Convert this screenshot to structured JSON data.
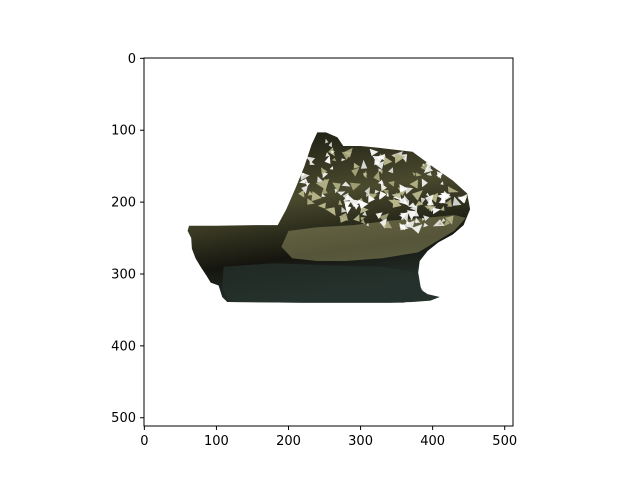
{
  "chart_data": {
    "type": "image",
    "title": "",
    "xlabel": "",
    "ylabel": "",
    "xlim": [
      -0.5,
      511.5
    ],
    "ylim": [
      511.5,
      -0.5
    ],
    "y_inverted": true,
    "grid": false,
    "x_ticks": [
      0,
      100,
      200,
      300,
      400,
      500
    ],
    "y_ticks": [
      0,
      100,
      200,
      300,
      400,
      500
    ],
    "x_tick_labels": [
      "0",
      "100",
      "200",
      "300",
      "400",
      "500"
    ],
    "y_tick_labels": [
      "0",
      "100",
      "200",
      "300",
      "400",
      "500"
    ],
    "image_content": {
      "description_name": "textured-3d-mesh-render",
      "background": "#ffffff",
      "colors": {
        "dark": "#15150f",
        "olive": "#4a4a2e",
        "khaki": "#8c8a5c",
        "teal_dark": "#26312c",
        "highlight": "#b8b68a"
      },
      "body_outline": [
        [
          60,
          240
        ],
        [
          62,
          233
        ],
        [
          100,
          233
        ],
        [
          155,
          232
        ],
        [
          185,
          232
        ],
        [
          197,
          210
        ],
        [
          210,
          180
        ],
        [
          222,
          150
        ],
        [
          232,
          120
        ],
        [
          240,
          103
        ],
        [
          252,
          103
        ],
        [
          268,
          110
        ],
        [
          276,
          122
        ],
        [
          300,
          122
        ],
        [
          330,
          125
        ],
        [
          372,
          130
        ],
        [
          402,
          152
        ],
        [
          428,
          170
        ],
        [
          448,
          188
        ],
        [
          452,
          210
        ],
        [
          443,
          232
        ],
        [
          428,
          245
        ],
        [
          408,
          256
        ],
        [
          393,
          268
        ],
        [
          382,
          282
        ],
        [
          380,
          298
        ],
        [
          384,
          322
        ],
        [
          393,
          328
        ],
        [
          410,
          332
        ],
        [
          397,
          337
        ],
        [
          372,
          339
        ],
        [
          340,
          340
        ],
        [
          290,
          340
        ],
        [
          220,
          340
        ],
        [
          115,
          339
        ],
        [
          108,
          332
        ],
        [
          103,
          316
        ],
        [
          92,
          312
        ],
        [
          86,
          302
        ],
        [
          78,
          290
        ],
        [
          71,
          278
        ],
        [
          66,
          265
        ],
        [
          65,
          250
        ]
      ],
      "sheen_polygon": [
        [
          200,
          240
        ],
        [
          240,
          235
        ],
        [
          290,
          232
        ],
        [
          340,
          226
        ],
        [
          390,
          222
        ],
        [
          430,
          218
        ],
        [
          446,
          222
        ],
        [
          430,
          240
        ],
        [
          405,
          255
        ],
        [
          380,
          270
        ],
        [
          330,
          278
        ],
        [
          280,
          282
        ],
        [
          240,
          282
        ],
        [
          205,
          278
        ],
        [
          190,
          262
        ]
      ],
      "base_polygon": [
        [
          110,
          290
        ],
        [
          180,
          285
        ],
        [
          260,
          288
        ],
        [
          330,
          290
        ],
        [
          370,
          296
        ],
        [
          380,
          312
        ],
        [
          390,
          330
        ],
        [
          360,
          340
        ],
        [
          300,
          340
        ],
        [
          220,
          340
        ],
        [
          118,
          339
        ],
        [
          108,
          320
        ]
      ],
      "speckle_region": [
        [
          215,
          135
        ],
        [
          250,
          112
        ],
        [
          285,
          125
        ],
        [
          340,
          128
        ],
        [
          385,
          140
        ],
        [
          420,
          162
        ],
        [
          445,
          190
        ],
        [
          445,
          215
        ],
        [
          425,
          232
        ],
        [
          380,
          236
        ],
        [
          330,
          238
        ],
        [
          285,
          232
        ],
        [
          245,
          222
        ],
        [
          225,
          200
        ],
        [
          212,
          170
        ]
      ],
      "speckle_count": 170,
      "speckle_seed": 7
    }
  }
}
